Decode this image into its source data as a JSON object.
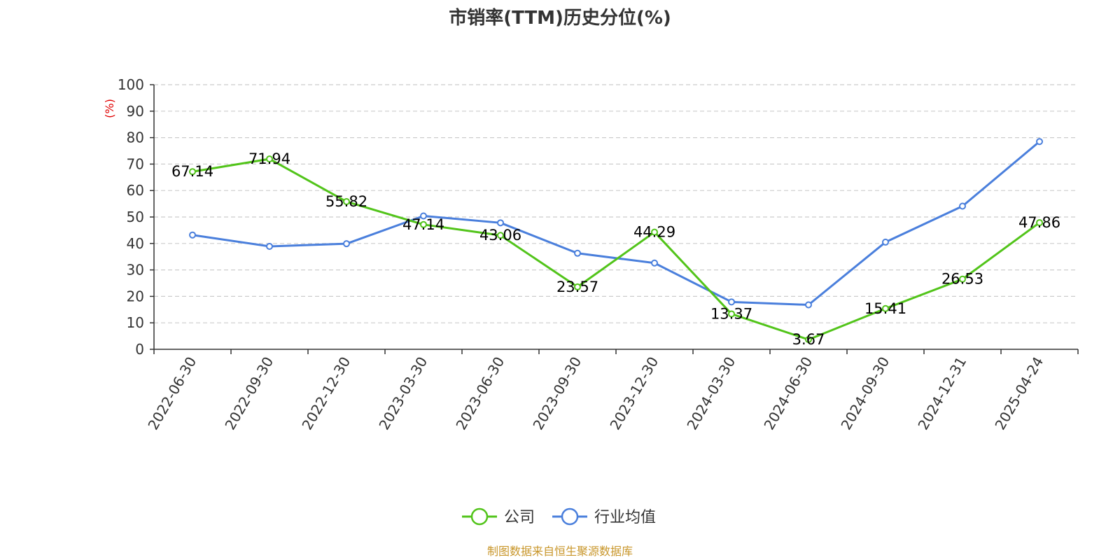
{
  "chart_data": {
    "type": "line",
    "title": "市销率(TTM)历史分位(%)",
    "ylabel": "(%)",
    "ylim": [
      0,
      100
    ],
    "yticks": [
      0,
      10,
      20,
      30,
      40,
      50,
      60,
      70,
      80,
      90,
      100
    ],
    "grid": true,
    "legend_position": "bottom-center",
    "categories": [
      "2022-06-30",
      "2022-09-30",
      "2022-12-30",
      "2023-03-30",
      "2023-06-30",
      "2023-09-30",
      "2023-12-30",
      "2024-03-30",
      "2024-06-30",
      "2024-09-30",
      "2024-12-31",
      "2025-04-24"
    ],
    "series": [
      {
        "name": "公司",
        "color": "#52c41a",
        "show_labels": true,
        "values": [
          67.14,
          71.94,
          55.82,
          47.14,
          43.06,
          23.57,
          44.29,
          13.37,
          3.67,
          15.41,
          26.53,
          47.86
        ],
        "labels": [
          "67.14",
          "71.94",
          "55.82",
          "47.14",
          "43.06",
          "23.57",
          "44.29",
          "13.37",
          "3.67",
          "15.41",
          "26.53",
          "47.86"
        ]
      },
      {
        "name": "行业均值",
        "color": "#4a7fdc",
        "show_labels": false,
        "values": [
          43.2,
          38.9,
          39.9,
          50.4,
          47.8,
          36.3,
          32.6,
          17.9,
          16.8,
          40.5,
          54.1,
          78.5
        ]
      }
    ]
  },
  "source_note": "制图数据来自恒生聚源数据库"
}
